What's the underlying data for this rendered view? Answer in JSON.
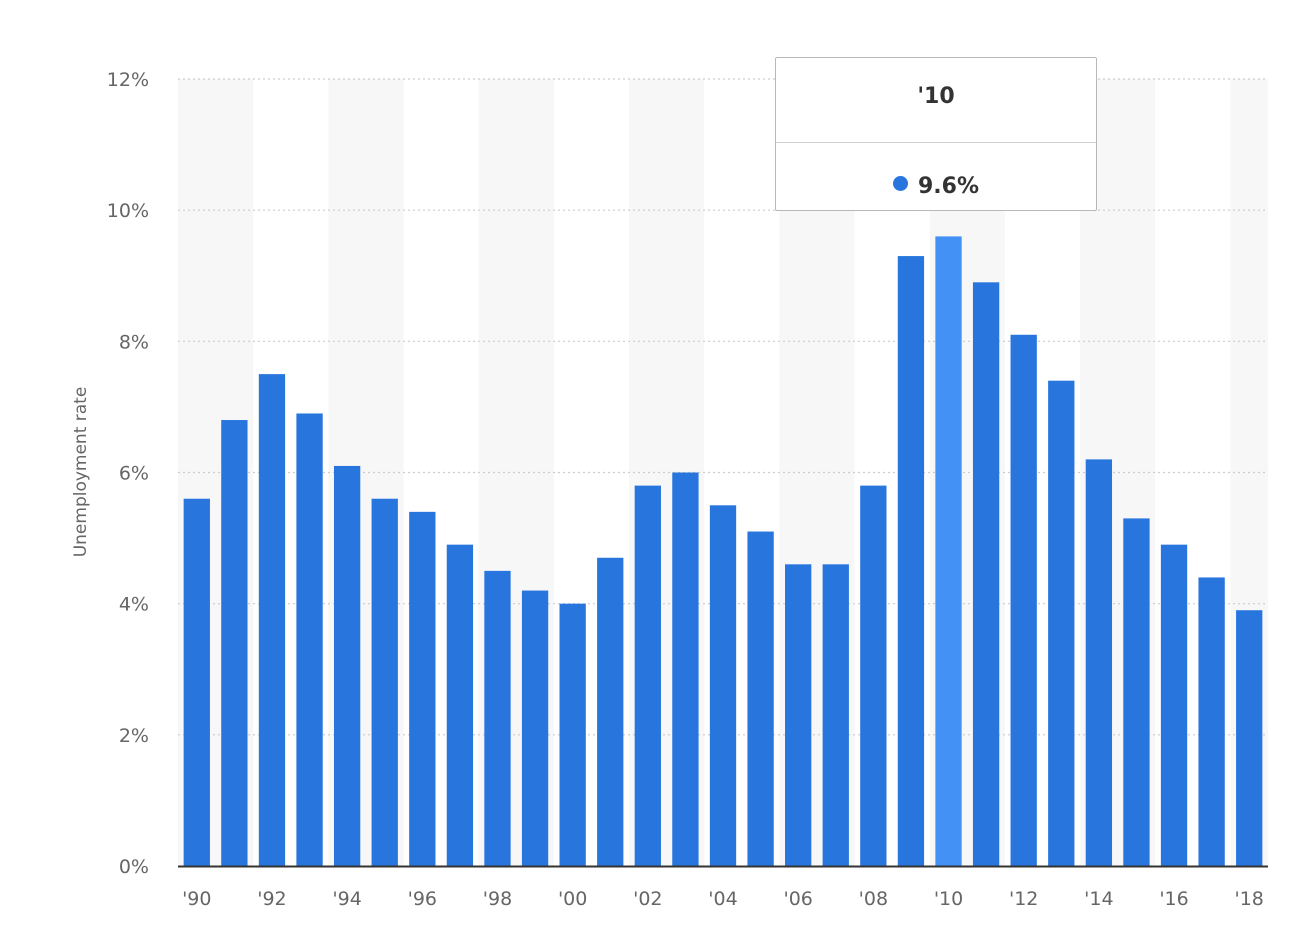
{
  "chart_data": {
    "type": "bar",
    "categories": [
      "'90",
      "'91",
      "'92",
      "'93",
      "'94",
      "'95",
      "'96",
      "'97",
      "'98",
      "'99",
      "'00",
      "'01",
      "'02",
      "'03",
      "'04",
      "'05",
      "'06",
      "'07",
      "'08",
      "'09",
      "'10",
      "'11",
      "'12",
      "'13",
      "'14",
      "'15",
      "'16",
      "'17",
      "'18"
    ],
    "tick_labels": [
      "'90",
      "'92",
      "'94",
      "'96",
      "'98",
      "'00",
      "'02",
      "'04",
      "'06",
      "'08",
      "'10",
      "'12",
      "'14",
      "'16",
      "'18"
    ],
    "values": [
      5.6,
      6.8,
      7.5,
      6.9,
      6.1,
      5.6,
      5.4,
      4.9,
      4.5,
      4.2,
      4.0,
      4.7,
      5.8,
      6.0,
      5.5,
      5.1,
      4.6,
      4.6,
      5.8,
      9.3,
      9.6,
      8.9,
      8.1,
      7.4,
      6.2,
      5.3,
      4.9,
      4.4,
      3.9
    ],
    "ylabel": "Unemployment rate",
    "ylim": [
      0,
      12
    ],
    "yticks": [
      "0%",
      "2%",
      "4%",
      "6%",
      "8%",
      "10%",
      "12%"
    ],
    "yticks_values": [
      0,
      2,
      4,
      6,
      8,
      10,
      12
    ],
    "grid": true,
    "highlighted_category": "'10",
    "colors": {
      "bar": "#2876dd",
      "bar_highlight": "#4391f5",
      "band": "#f7f7f7",
      "grid": "#cccccc",
      "axis": "#333333"
    }
  },
  "tooltip": {
    "title": "'10",
    "value": "9.6%"
  }
}
